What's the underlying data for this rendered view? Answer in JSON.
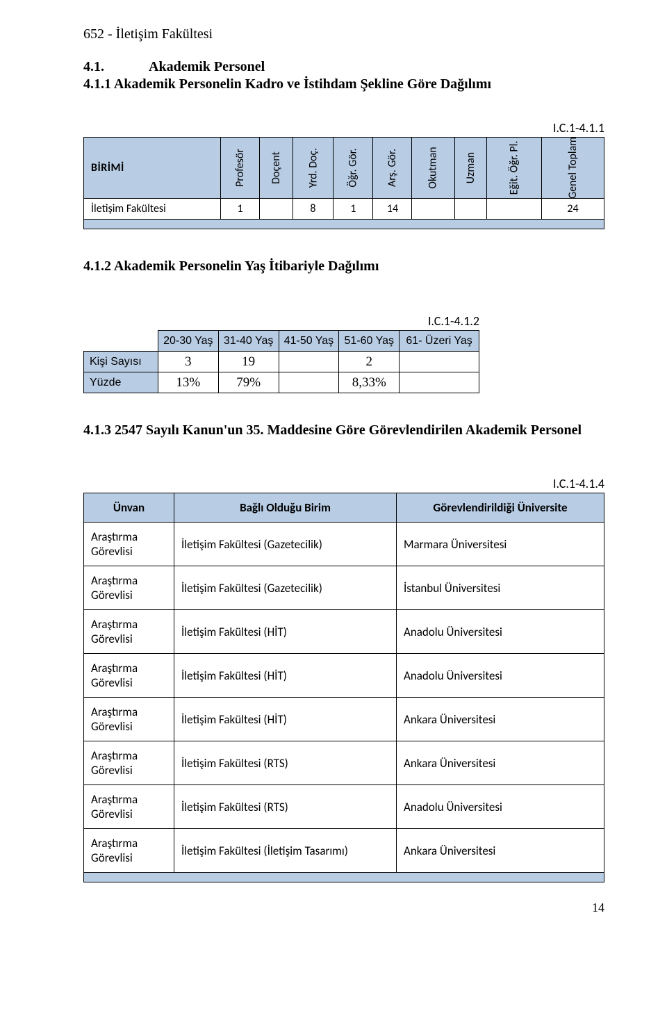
{
  "header": "652 - İletişim Fakültesi",
  "section": {
    "num": "4.1.",
    "title": "Akademik Personel"
  },
  "sub1": {
    "heading": "4.1.1 Akademik Personelin Kadro ve İstihdam Şekline Göre Dağılımı",
    "code": "I.C.1-4.1.1",
    "birimi_label": "BİRİMİ",
    "cols": [
      "Profesör",
      "Doçent",
      "Yrd. Doç.",
      "Öğr. Gör.",
      "Arş. Gör.",
      "Okutman",
      "Uzman",
      "Eğit. Öğr. Pl.",
      "Genel Toplam"
    ],
    "row_label": "İletişim Fakültesi",
    "row_values": [
      "1",
      "",
      "8",
      "1",
      "14",
      "",
      "",
      "",
      "24"
    ]
  },
  "sub2": {
    "heading": "4.1.2 Akademik Personelin Yaş İtibariyle Dağılımı",
    "code": "I.C.1-4.1.2",
    "cols": [
      "20-30 Yaş",
      "31-40 Yaş",
      "41-50 Yaş",
      "51-60 Yaş",
      "61- Üzeri Yaş"
    ],
    "rows": [
      {
        "label": "Kişi Sayısı",
        "values": [
          "3",
          "19",
          "",
          "2",
          ""
        ]
      },
      {
        "label": "Yüzde",
        "values": [
          "13%",
          "79%",
          "",
          "8,33%",
          ""
        ]
      }
    ]
  },
  "sub3": {
    "heading": "4.1.3 2547 Sayılı Kanun'un 35. Maddesine Göre Görevlendirilen Akademik Personel",
    "code": "I.C.1-4.1.4",
    "headers": [
      "Ünvan",
      "Bağlı Olduğu Birim",
      "Görevlendirildiği Üniversite"
    ],
    "rows": [
      [
        "Araştırma Görevlisi",
        "İletişim Fakültesi (Gazetecilik)",
        "Marmara Üniversitesi"
      ],
      [
        "Araştırma Görevlisi",
        "İletişim Fakültesi (Gazetecilik)",
        "İstanbul Üniversitesi"
      ],
      [
        "Araştırma Görevlisi",
        "İletişim Fakültesi (HİT)",
        "Anadolu Üniversitesi"
      ],
      [
        "Araştırma Görevlisi",
        "İletişim Fakültesi (HİT)",
        "Anadolu Üniversitesi"
      ],
      [
        "Araştırma Görevlisi",
        "İletişim Fakültesi (HİT)",
        "Ankara Üniversitesi"
      ],
      [
        "Araştırma Görevlisi",
        "İletişim Fakültesi (RTS)",
        "Ankara Üniversitesi"
      ],
      [
        "Araştırma Görevlisi",
        "İletişim Fakültesi (RTS)",
        "Anadolu Üniversitesi"
      ],
      [
        "Araştırma Görevlisi",
        "İletişim Fakültesi (İletişim Tasarımı)",
        "Ankara Üniversitesi"
      ]
    ]
  },
  "page_number": "14"
}
